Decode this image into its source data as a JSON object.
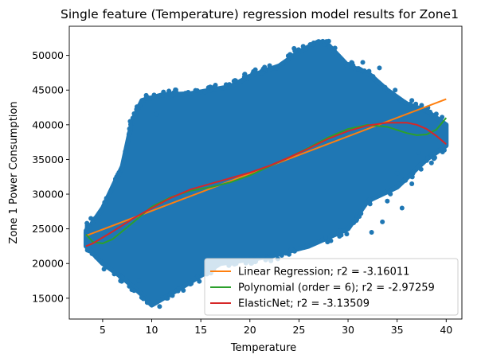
{
  "chart_data": {
    "type": "scatter",
    "title": "Single feature (Temperature) regression model results for Zone1",
    "xlabel": "Temperature",
    "ylabel": "Zone 1 Power Consumption",
    "xlim": [
      1.6,
      41.6
    ],
    "ylim": [
      12000,
      54200
    ],
    "x_ticks": [
      5,
      10,
      15,
      20,
      25,
      30,
      35,
      40
    ],
    "y_ticks": [
      15000,
      20000,
      25000,
      30000,
      35000,
      40000,
      45000,
      50000
    ],
    "grid": false,
    "legend_position": "lower-right",
    "scatter": {
      "name": "",
      "color": "#1f77b4",
      "band_lower": [
        [
          3.3,
          22500
        ],
        [
          5,
          20000
        ],
        [
          7,
          18000
        ],
        [
          9,
          15500
        ],
        [
          10,
          14000
        ],
        [
          13,
          16500
        ],
        [
          17,
          20000
        ],
        [
          22,
          21000
        ],
        [
          26,
          22500
        ],
        [
          30,
          25000
        ],
        [
          32,
          29000
        ],
        [
          35,
          31000
        ],
        [
          38,
          35000
        ],
        [
          40,
          37000
        ]
      ],
      "band_upper": [
        [
          3.3,
          24500
        ],
        [
          5,
          28000
        ],
        [
          7,
          34000
        ],
        [
          8,
          40500
        ],
        [
          9,
          43500
        ],
        [
          11,
          44300
        ],
        [
          14,
          44500
        ],
        [
          18,
          45500
        ],
        [
          20,
          47000
        ],
        [
          23,
          48500
        ],
        [
          25,
          50500
        ],
        [
          27,
          52000
        ],
        [
          28,
          51500
        ],
        [
          30,
          48500
        ],
        [
          32,
          47500
        ],
        [
          34,
          45000
        ],
        [
          36,
          43000
        ],
        [
          38,
          42000
        ],
        [
          40,
          40000
        ]
      ],
      "outliers": [
        [
          7.8,
          40500
        ],
        [
          9.5,
          43800
        ],
        [
          12,
          44200
        ],
        [
          10.5,
          41500
        ],
        [
          24.5,
          51000
        ],
        [
          26.5,
          51800
        ],
        [
          27.8,
          52000
        ],
        [
          31.5,
          49000
        ],
        [
          33.2,
          48200
        ],
        [
          34.8,
          45000
        ],
        [
          36.5,
          43500
        ],
        [
          38,
          39500
        ],
        [
          39.2,
          38000
        ],
        [
          35,
          33000
        ],
        [
          36.5,
          31500
        ],
        [
          34,
          29000
        ],
        [
          3.8,
          26500
        ],
        [
          3.4,
          25800
        ],
        [
          8.7,
          17500
        ],
        [
          10.8,
          13800
        ],
        [
          11.5,
          15000
        ],
        [
          33.5,
          26000
        ],
        [
          32.4,
          24500
        ],
        [
          38.5,
          34500
        ],
        [
          37.2,
          36000
        ],
        [
          35.5,
          28000
        ]
      ]
    },
    "series": [
      {
        "name": "Linear Regression; r2 = -3.16011",
        "color": "#ff7f0e",
        "points": [
          [
            3.3,
            24000
          ],
          [
            40,
            43700
          ]
        ]
      },
      {
        "name": "Polynomial (order = 6); r2 = -2.97259",
        "color": "#2ca02c",
        "points": [
          [
            3.3,
            24200
          ],
          [
            4,
            23100
          ],
          [
            5,
            22900
          ],
          [
            6,
            23500
          ],
          [
            8,
            25800
          ],
          [
            10,
            28200
          ],
          [
            12,
            29600
          ],
          [
            14,
            30500
          ],
          [
            16,
            31000
          ],
          [
            18,
            31700
          ],
          [
            20,
            32700
          ],
          [
            22,
            34000
          ],
          [
            24,
            35300
          ],
          [
            26,
            36700
          ],
          [
            28,
            38200
          ],
          [
            30,
            39400
          ],
          [
            32,
            40000
          ],
          [
            34,
            39700
          ],
          [
            36,
            38800
          ],
          [
            37,
            38500
          ],
          [
            38,
            38600
          ],
          [
            39,
            39300
          ],
          [
            40,
            41000
          ]
        ]
      },
      {
        "name": "ElasticNet; r2 = -3.13509",
        "color": "#d62728",
        "points": [
          [
            3.3,
            22500
          ],
          [
            4,
            22900
          ],
          [
            6,
            24600
          ],
          [
            8,
            26400
          ],
          [
            10,
            28000
          ],
          [
            12,
            29500
          ],
          [
            14,
            30700
          ],
          [
            16,
            31500
          ],
          [
            18,
            32300
          ],
          [
            20,
            33100
          ],
          [
            22,
            34100
          ],
          [
            24,
            35300
          ],
          [
            26,
            36600
          ],
          [
            28,
            38000
          ],
          [
            30,
            39100
          ],
          [
            32,
            39900
          ],
          [
            34,
            40300
          ],
          [
            36,
            40300
          ],
          [
            37,
            40000
          ],
          [
            38,
            39400
          ],
          [
            39,
            38400
          ],
          [
            40,
            37200
          ]
        ]
      }
    ]
  }
}
